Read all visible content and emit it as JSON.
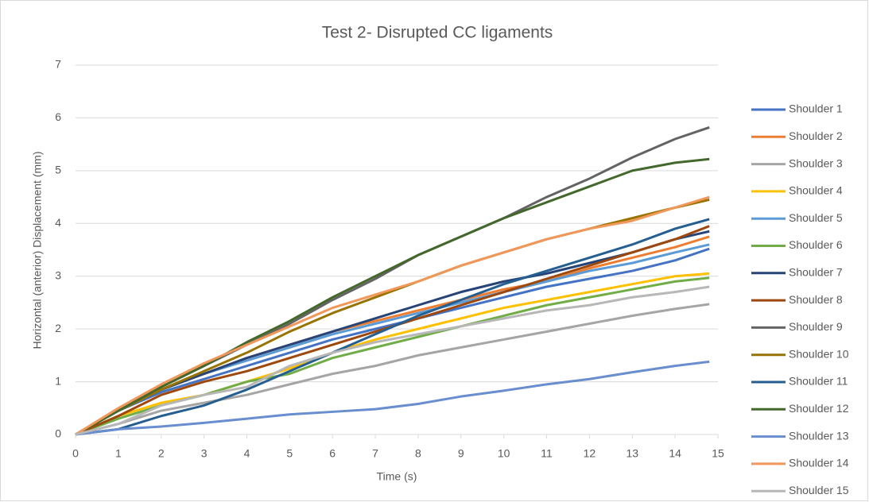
{
  "chart_data": {
    "type": "line",
    "title": "Test 2- Disrupted CC ligaments",
    "x_label": "Time (s)",
    "y_label": "Horizontal (anterior) Displacement (mm)",
    "x": [
      0,
      1,
      2,
      3,
      4,
      5,
      6,
      7,
      8,
      9,
      10,
      11,
      12,
      13,
      14,
      14.8
    ],
    "xlim": [
      0,
      15
    ],
    "xticks": [
      0,
      1,
      2,
      3,
      4,
      5,
      6,
      7,
      8,
      9,
      10,
      11,
      12,
      13,
      14,
      15
    ],
    "ylim": [
      0,
      7
    ],
    "yticks": [
      0,
      1,
      2,
      3,
      4,
      5,
      6,
      7
    ],
    "grid": true,
    "legend": "right",
    "series": [
      {
        "name": "Shoulder 1",
        "color": "#4472c4",
        "values": [
          0,
          0.45,
          0.8,
          1.05,
          1.3,
          1.55,
          1.8,
          2.0,
          2.2,
          2.4,
          2.6,
          2.8,
          2.95,
          3.1,
          3.3,
          3.52
        ]
      },
      {
        "name": "Shoulder 2",
        "color": "#ed7d31",
        "values": [
          0,
          0.45,
          0.85,
          1.15,
          1.45,
          1.7,
          1.95,
          2.15,
          2.35,
          2.55,
          2.75,
          2.9,
          3.15,
          3.35,
          3.55,
          3.75
        ]
      },
      {
        "name": "Shoulder 3",
        "color": "#a5a5a5",
        "values": [
          0,
          0.2,
          0.45,
          0.6,
          0.75,
          0.95,
          1.15,
          1.3,
          1.5,
          1.65,
          1.8,
          1.95,
          2.1,
          2.25,
          2.38,
          2.47
        ]
      },
      {
        "name": "Shoulder 4",
        "color": "#ffc000",
        "values": [
          0,
          0.35,
          0.6,
          0.75,
          1.0,
          1.25,
          1.55,
          1.8,
          2.0,
          2.2,
          2.4,
          2.55,
          2.7,
          2.85,
          3.0,
          3.05
        ]
      },
      {
        "name": "Shoulder 5",
        "color": "#5b9bd5",
        "values": [
          0,
          0.45,
          0.85,
          1.15,
          1.4,
          1.65,
          1.9,
          2.1,
          2.3,
          2.5,
          2.7,
          2.9,
          3.1,
          3.25,
          3.45,
          3.6
        ]
      },
      {
        "name": "Shoulder 6",
        "color": "#70ad47",
        "values": [
          0,
          0.3,
          0.55,
          0.75,
          1.0,
          1.15,
          1.45,
          1.65,
          1.85,
          2.05,
          2.25,
          2.45,
          2.6,
          2.75,
          2.9,
          2.97
        ]
      },
      {
        "name": "Shoulder 7",
        "color": "#264478",
        "values": [
          0,
          0.45,
          0.85,
          1.15,
          1.45,
          1.7,
          1.95,
          2.2,
          2.45,
          2.7,
          2.9,
          3.05,
          3.25,
          3.45,
          3.7,
          3.85
        ]
      },
      {
        "name": "Shoulder 8",
        "color": "#9e480e",
        "values": [
          0,
          0.35,
          0.75,
          1.0,
          1.2,
          1.45,
          1.7,
          1.95,
          2.2,
          2.45,
          2.7,
          2.95,
          3.2,
          3.45,
          3.7,
          3.95
        ]
      },
      {
        "name": "Shoulder 9",
        "color": "#636363",
        "values": [
          0,
          0.45,
          0.9,
          1.3,
          1.7,
          2.1,
          2.55,
          2.95,
          3.4,
          3.75,
          4.1,
          4.5,
          4.85,
          5.25,
          5.6,
          5.82
        ]
      },
      {
        "name": "Shoulder 10",
        "color": "#997300",
        "values": [
          0,
          0.45,
          0.85,
          1.2,
          1.55,
          1.95,
          2.3,
          2.6,
          2.9,
          3.2,
          3.45,
          3.7,
          3.9,
          4.1,
          4.3,
          4.45
        ]
      },
      {
        "name": "Shoulder 11",
        "color": "#255e91",
        "values": [
          0,
          0.1,
          0.35,
          0.55,
          0.85,
          1.2,
          1.55,
          1.9,
          2.25,
          2.55,
          2.85,
          3.1,
          3.35,
          3.6,
          3.9,
          4.08
        ]
      },
      {
        "name": "Shoulder 12",
        "color": "#43682b",
        "values": [
          0,
          0.45,
          0.9,
          1.3,
          1.75,
          2.15,
          2.6,
          3.0,
          3.4,
          3.75,
          4.1,
          4.4,
          4.7,
          5.0,
          5.15,
          5.22
        ]
      },
      {
        "name": "Shoulder 13",
        "color": "#698ed0",
        "values": [
          0,
          0.1,
          0.15,
          0.22,
          0.3,
          0.38,
          0.43,
          0.48,
          0.58,
          0.72,
          0.83,
          0.95,
          1.05,
          1.18,
          1.3,
          1.38
        ]
      },
      {
        "name": "Shoulder 14",
        "color": "#f1975a",
        "values": [
          0,
          0.5,
          0.95,
          1.35,
          1.7,
          2.05,
          2.4,
          2.65,
          2.9,
          3.2,
          3.45,
          3.7,
          3.9,
          4.05,
          4.3,
          4.5
        ]
      },
      {
        "name": "Shoulder 15",
        "color": "#b7b7b7",
        "values": [
          0,
          0.2,
          0.55,
          0.75,
          0.9,
          1.3,
          1.55,
          1.75,
          1.9,
          2.05,
          2.2,
          2.35,
          2.45,
          2.6,
          2.7,
          2.8
        ]
      }
    ]
  }
}
